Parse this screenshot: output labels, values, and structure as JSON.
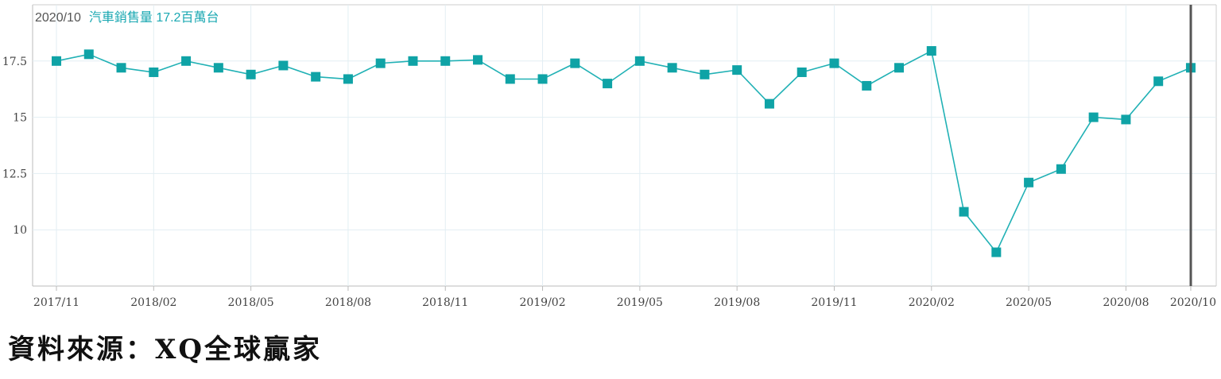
{
  "colors": {
    "series": "#21b1b5",
    "marker": "#0fa3a6",
    "grid": "#e2eef3",
    "axis": "#bbbbbb",
    "tick_text": "#444444",
    "cursor": "#555555"
  },
  "hover": {
    "date": "2020/10",
    "name": "汽車銷售量",
    "value": "17.2",
    "unit": "百萬台"
  },
  "source": "資料來源：XQ全球贏家",
  "chart_data": {
    "type": "line",
    "title": "",
    "xlabel": "",
    "ylabel": "",
    "ylim": [
      7.5,
      20
    ],
    "yticks": [
      10,
      12.5,
      15,
      17.5
    ],
    "ytick_labels": [
      "10",
      "12.5",
      "15",
      "17.5"
    ],
    "xtick_labels": [
      "2017/11",
      "2018/02",
      "2018/05",
      "2018/08",
      "2018/11",
      "2019/02",
      "2019/05",
      "2019/08",
      "2019/11",
      "2020/02",
      "2020/05",
      "2020/08",
      "2020/10"
    ],
    "xtick_index": [
      0,
      3,
      6,
      9,
      12,
      15,
      18,
      21,
      24,
      27,
      30,
      33,
      35
    ],
    "grid": true,
    "series": [
      {
        "name": "汽車銷售量",
        "x": [
          "2017/11",
          "2017/12",
          "2018/01",
          "2018/02",
          "2018/03",
          "2018/04",
          "2018/05",
          "2018/06",
          "2018/07",
          "2018/08",
          "2018/09",
          "2018/10",
          "2018/11",
          "2018/12",
          "2019/01",
          "2019/02",
          "2019/03",
          "2019/04",
          "2019/05",
          "2019/06",
          "2019/07",
          "2019/08",
          "2019/09",
          "2019/10",
          "2019/11",
          "2019/12",
          "2020/01",
          "2020/02",
          "2020/03",
          "2020/04",
          "2020/05",
          "2020/06",
          "2020/07",
          "2020/08",
          "2020/09",
          "2020/10"
        ],
        "values": [
          17.5,
          17.8,
          17.2,
          17.0,
          17.5,
          17.2,
          16.9,
          17.3,
          16.8,
          16.7,
          17.4,
          17.5,
          17.5,
          17.55,
          16.7,
          16.7,
          17.4,
          16.5,
          17.5,
          17.2,
          16.9,
          17.1,
          15.6,
          17.0,
          17.4,
          16.4,
          17.2,
          17.95,
          10.8,
          9.0,
          12.1,
          12.7,
          15.0,
          14.9,
          16.6,
          17.2
        ]
      }
    ]
  }
}
